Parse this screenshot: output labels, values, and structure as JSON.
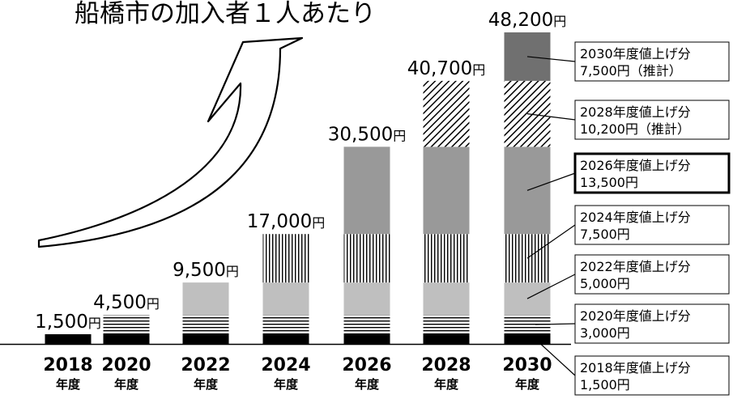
{
  "title": "船橋市の加入者１人あたり",
  "chart_data": {
    "type": "bar",
    "stacked": true,
    "categories": [
      "2018",
      "2020",
      "2022",
      "2024",
      "2026",
      "2028",
      "2030"
    ],
    "category_suffix": "年度",
    "totals": [
      1500,
      4500,
      9500,
      17000,
      30500,
      40700,
      48200
    ],
    "total_labels": [
      "1,500",
      "4,500",
      "9,500",
      "17,000",
      "30,500",
      "40,700",
      "48,200"
    ],
    "value_unit": "円",
    "series": [
      {
        "name": "2018年度値上げ分",
        "amount": "1,500円",
        "starts": "2018",
        "value": 1500,
        "pattern": "solid-black"
      },
      {
        "name": "2020年度値上げ分",
        "amount": "3,000円",
        "starts": "2020",
        "value": 3000,
        "pattern": "horizontal-lines"
      },
      {
        "name": "2022年度値上げ分",
        "amount": "5,000円",
        "starts": "2022",
        "value": 5000,
        "pattern": "light-gray"
      },
      {
        "name": "2024年度値上げ分",
        "amount": "7,500円",
        "starts": "2024",
        "value": 7500,
        "pattern": "vertical-lines"
      },
      {
        "name": "2026年度値上げ分",
        "amount": "13,500円",
        "starts": "2026",
        "value": 13500,
        "pattern": "mid-gray"
      },
      {
        "name": "2028年度値上げ分",
        "amount": "10,200円（推計）",
        "starts": "2028",
        "value": 10200,
        "pattern": "diagonal-lines"
      },
      {
        "name": "2030年度値上げ分",
        "amount": "7,500円（推計）",
        "starts": "2030",
        "value": 7500,
        "pattern": "dark-gray"
      }
    ],
    "highlighted_legend": "2026年度値上げ分",
    "colors": {
      "black": "#000000",
      "lightGray": "#bfbfbf",
      "midGray": "#999999",
      "darkGray": "#707070"
    }
  }
}
